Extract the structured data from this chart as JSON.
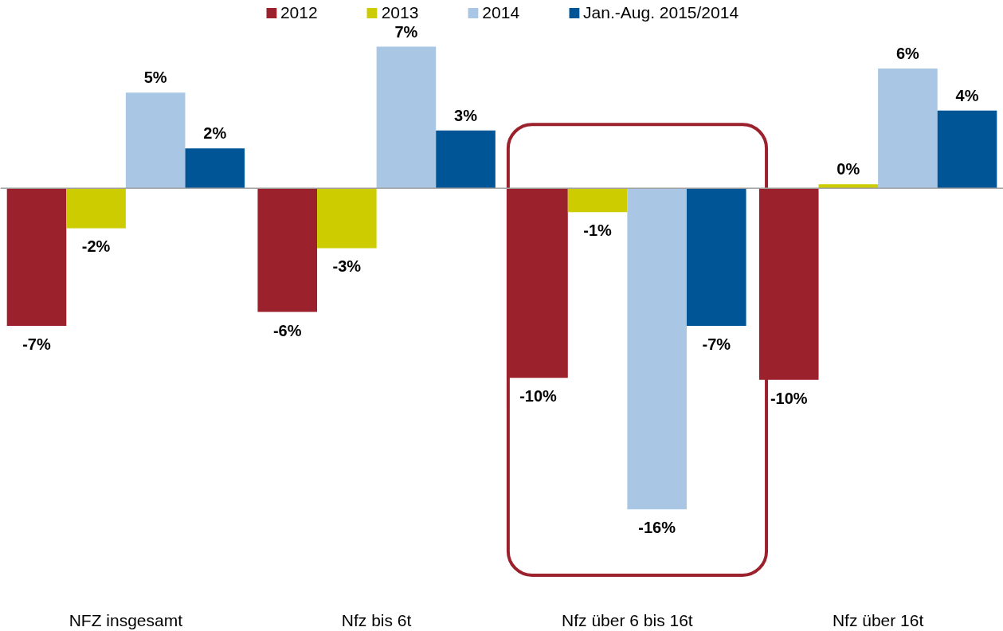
{
  "chart_data": {
    "type": "bar",
    "categories": [
      "NFZ insgesamt",
      "Nfz bis 6t",
      "Nfz über 6 bis 16t",
      "Nfz über 16t"
    ],
    "series": [
      {
        "name": "2012",
        "color": "#9b212d",
        "values": [
          -6.9,
          -6.2,
          -9.5,
          -9.6
        ],
        "value_labels": [
          "-7%",
          "-6%",
          "-10%",
          "-10%"
        ]
      },
      {
        "name": "2013",
        "color": "#cccc00",
        "values": [
          -2.0,
          -3.0,
          -1.2,
          0.2
        ],
        "value_labels": [
          "-2%",
          "-3%",
          "-1%",
          "0%"
        ]
      },
      {
        "name": "2014",
        "color": "#a9c6e4",
        "values": [
          4.8,
          7.1,
          -16.1,
          6.0
        ],
        "value_labels": [
          "5%",
          "7%",
          "-16%",
          "6%"
        ]
      },
      {
        "name": "Jan.-Aug. 2015/2014",
        "color": "#005596",
        "values": [
          2.0,
          2.9,
          -6.9,
          3.9
        ],
        "value_labels": [
          "2%",
          "3%",
          "-7%",
          "4%"
        ]
      }
    ],
    "tick_labels": "x",
    "legend": "top"
  }
}
